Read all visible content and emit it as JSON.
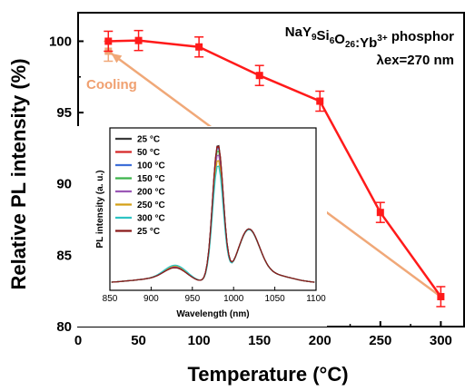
{
  "chart_data": [
    {
      "type": "line",
      "title": "",
      "xlabel": "Temperature (°C)",
      "ylabel": "Relative PL intensity (%)",
      "xlim": [
        0,
        320
      ],
      "ylim": [
        80,
        102
      ],
      "xticks": [
        "0",
        "50",
        "100",
        "150",
        "200",
        "250",
        "300"
      ],
      "yticks": [
        "80",
        "85",
        "90",
        "95",
        "100"
      ],
      "annotations": {
        "compound": "NaY₉Si₆O₂₆:Yb³⁺ phosphor",
        "excitation": "λex=270 nm",
        "cooling_label": "Cooling"
      },
      "series": [
        {
          "name": "",
          "color": "#ff1a1a",
          "x": [
            25,
            50,
            100,
            150,
            200,
            250,
            300
          ],
          "y": [
            100.0,
            100.05,
            99.6,
            97.6,
            95.8,
            88.0,
            82.1
          ],
          "err": [
            0.7,
            0.7,
            0.7,
            0.7,
            0.7,
            0.7,
            0.7
          ]
        },
        {
          "name": "Cooling",
          "color": "#f0a878",
          "x": [
            300,
            25
          ],
          "y": [
            82.1,
            99.3
          ],
          "err": [
            0,
            0.7
          ]
        }
      ]
    },
    {
      "type": "line",
      "title": "",
      "xlabel": "Wavelength (nm)",
      "ylabel": "PL intensity (a. u.)",
      "xlim": [
        850,
        1100
      ],
      "xticks": [
        "850",
        "900",
        "950",
        "1000",
        "1050",
        "1100"
      ],
      "legend": "top-left",
      "series": [
        {
          "name": "25 °C",
          "color": "#3a3a3a",
          "scale": 1.0
        },
        {
          "name": "50 °C",
          "color": "#d62728",
          "scale": 0.99
        },
        {
          "name": "100 °C",
          "color": "#3f6fd8",
          "scale": 0.98
        },
        {
          "name": "150 °C",
          "color": "#3cb44b",
          "scale": 0.96
        },
        {
          "name": "200 °C",
          "color": "#9b59b6",
          "scale": 0.93
        },
        {
          "name": "250 °C",
          "color": "#d4a017",
          "scale": 0.89
        },
        {
          "name": "300 °C",
          "color": "#2ec4c4",
          "scale": 0.85
        },
        {
          "name": "25 °C",
          "color": "#8b1a1a",
          "scale": 0.995
        }
      ]
    }
  ]
}
